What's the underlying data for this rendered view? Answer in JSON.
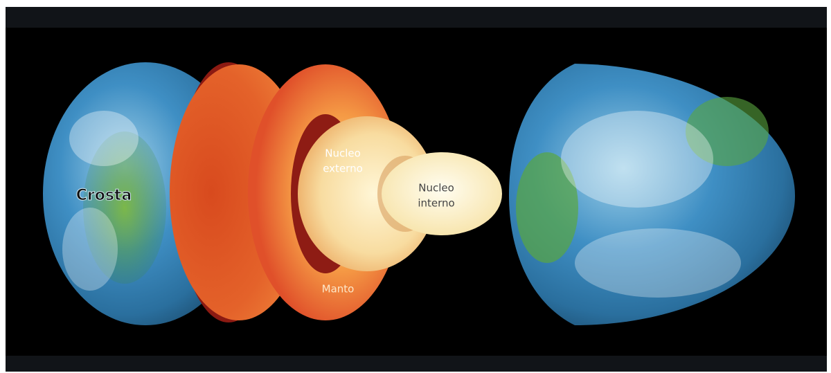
{
  "labels": {
    "crust": "Crosta",
    "outer_core": [
      "Nucleo",
      "externo"
    ],
    "inner_core": [
      "Nucleo",
      "interno"
    ],
    "mantle": "Manto"
  }
}
